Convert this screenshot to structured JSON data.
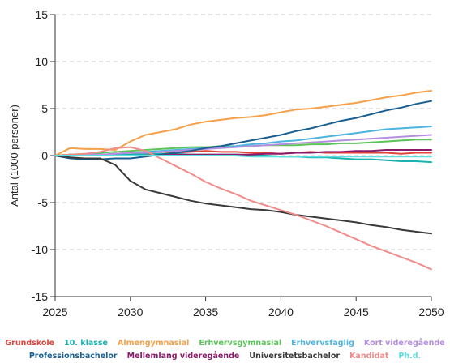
{
  "chart_data": {
    "type": "line",
    "title": "",
    "xlabel": "",
    "ylabel": "Antal (1000 personer)",
    "xlim": [
      2025,
      2050
    ],
    "ylim": [
      -15,
      15
    ],
    "xticks": [
      2025,
      2030,
      2035,
      2040,
      2045,
      2050
    ],
    "yticks": [
      15,
      10,
      5,
      0,
      -5,
      -10,
      -15
    ],
    "grid": "horizontal dashed",
    "legend_position": "bottom",
    "x": [
      2025,
      2026,
      2027,
      2028,
      2029,
      2030,
      2031,
      2032,
      2033,
      2034,
      2035,
      2036,
      2037,
      2038,
      2039,
      2040,
      2041,
      2042,
      2043,
      2044,
      2045,
      2046,
      2047,
      2048,
      2049,
      2050
    ],
    "series": [
      {
        "name": "Grundskole",
        "color": "#e0433a",
        "values": [
          0,
          0.1,
          0.1,
          0.1,
          0.1,
          0.1,
          0.1,
          0.2,
          0.3,
          0.4,
          0.5,
          0.4,
          0.4,
          0.3,
          0.3,
          0.2,
          0.3,
          0.4,
          0.3,
          0.3,
          0.3,
          0.3,
          0.3,
          0.2,
          0.3,
          0.3
        ]
      },
      {
        "name": "10. klasse",
        "color": "#1bb3b0",
        "values": [
          0,
          0.1,
          0.1,
          0.1,
          0.1,
          0.1,
          0.2,
          0.2,
          0.2,
          0.1,
          0.1,
          0.1,
          0.1,
          0.0,
          0.0,
          -0.1,
          -0.1,
          -0.2,
          -0.2,
          -0.3,
          -0.4,
          -0.4,
          -0.5,
          -0.6,
          -0.6,
          -0.7
        ]
      },
      {
        "name": "Almengymnasial",
        "color": "#f5a04a",
        "values": [
          0,
          0.8,
          0.7,
          0.7,
          0.6,
          1.5,
          2.2,
          2.5,
          2.8,
          3.3,
          3.6,
          3.8,
          4.0,
          4.1,
          4.3,
          4.6,
          4.9,
          5.0,
          5.2,
          5.4,
          5.6,
          5.9,
          6.2,
          6.4,
          6.7,
          6.9
        ]
      },
      {
        "name": "Erhvervsgymnasial",
        "color": "#5cc45a",
        "values": [
          0,
          0.1,
          0.2,
          0.3,
          0.4,
          0.5,
          0.6,
          0.7,
          0.8,
          0.9,
          0.9,
          1.0,
          1.0,
          1.0,
          1.1,
          1.1,
          1.1,
          1.2,
          1.2,
          1.3,
          1.3,
          1.4,
          1.5,
          1.6,
          1.7,
          1.7
        ]
      },
      {
        "name": "Erhvervsfaglig",
        "color": "#4fb3e0",
        "values": [
          0,
          0.0,
          0.1,
          0.1,
          0.2,
          0.3,
          0.4,
          0.5,
          0.6,
          0.7,
          0.8,
          0.9,
          1.0,
          1.2,
          1.3,
          1.5,
          1.6,
          1.8,
          2.0,
          2.2,
          2.4,
          2.6,
          2.8,
          2.9,
          3.0,
          3.1
        ]
      },
      {
        "name": "Kort videregående",
        "color": "#b48fe0",
        "values": [
          0,
          0.0,
          0.1,
          0.1,
          0.2,
          0.3,
          0.3,
          0.4,
          0.5,
          0.6,
          0.7,
          0.8,
          0.9,
          1.0,
          1.1,
          1.2,
          1.3,
          1.4,
          1.5,
          1.6,
          1.7,
          1.8,
          1.9,
          2.0,
          2.1,
          2.2
        ]
      },
      {
        "name": "Professionsbachelor",
        "color": "#1a5f8f",
        "values": [
          0,
          -0.3,
          -0.4,
          -0.4,
          -0.3,
          -0.3,
          -0.1,
          0.1,
          0.3,
          0.5,
          0.8,
          1.0,
          1.3,
          1.6,
          1.9,
          2.2,
          2.6,
          2.9,
          3.3,
          3.7,
          4.0,
          4.4,
          4.8,
          5.1,
          5.5,
          5.8
        ]
      },
      {
        "name": "Mellemlang videregående",
        "color": "#8b1a6b",
        "values": [
          0,
          0.0,
          0.0,
          0.0,
          0.0,
          0.0,
          0.0,
          0.0,
          0.1,
          0.1,
          0.1,
          0.1,
          0.1,
          0.1,
          0.2,
          0.2,
          0.3,
          0.3,
          0.4,
          0.4,
          0.5,
          0.5,
          0.6,
          0.6,
          0.6,
          0.6
        ]
      },
      {
        "name": "Universitetsbachelor",
        "color": "#3a3a3a",
        "values": [
          0,
          -0.2,
          -0.3,
          -0.3,
          -1.0,
          -2.7,
          -3.6,
          -4.0,
          -4.4,
          -4.8,
          -5.1,
          -5.3,
          -5.5,
          -5.7,
          -5.8,
          -6.0,
          -6.3,
          -6.5,
          -6.7,
          -6.9,
          -7.1,
          -7.4,
          -7.6,
          -7.9,
          -8.1,
          -8.3
        ]
      },
      {
        "name": "Kandidat",
        "color": "#f08c8a",
        "values": [
          0,
          0.1,
          0.2,
          0.4,
          0.8,
          0.9,
          0.5,
          -0.3,
          -1.1,
          -1.9,
          -2.8,
          -3.5,
          -4.1,
          -4.8,
          -5.3,
          -5.8,
          -6.3,
          -6.9,
          -7.5,
          -8.2,
          -8.9,
          -9.6,
          -10.2,
          -10.8,
          -11.4,
          -12.1
        ]
      },
      {
        "name": "Ph.d.",
        "color": "#5fe0e0",
        "values": [
          0,
          0.0,
          0.0,
          0.0,
          0.0,
          0.0,
          0.0,
          0.0,
          0.0,
          0.0,
          0.0,
          0.0,
          0.0,
          -0.1,
          -0.1,
          -0.1,
          -0.1,
          -0.1,
          -0.1,
          -0.1,
          -0.1,
          -0.1,
          -0.1,
          -0.1,
          -0.1,
          -0.1
        ]
      }
    ]
  }
}
